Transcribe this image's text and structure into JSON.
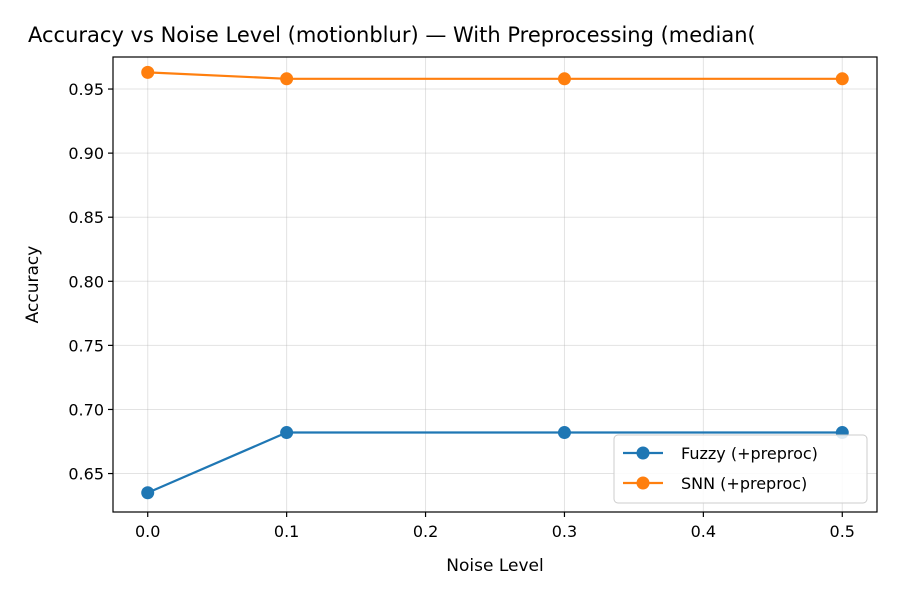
{
  "chart_data": {
    "type": "line",
    "title": "Accuracy vs Noise Level (motionblur) — With Preprocessing (median(",
    "xlabel": "Noise Level",
    "ylabel": "Accuracy",
    "xlim": [
      -0.025,
      0.525
    ],
    "ylim": [
      0.62,
      0.975
    ],
    "xticks": [
      0.0,
      0.1,
      0.2,
      0.3,
      0.4,
      0.5
    ],
    "xtick_labels": [
      "0.0",
      "0.1",
      "0.2",
      "0.3",
      "0.4",
      "0.5"
    ],
    "yticks": [
      0.65,
      0.7,
      0.75,
      0.8,
      0.85,
      0.9,
      0.95
    ],
    "ytick_labels": [
      "0.65",
      "0.70",
      "0.75",
      "0.80",
      "0.85",
      "0.90",
      "0.95"
    ],
    "grid": true,
    "legend_position": "lower-right",
    "series": [
      {
        "name": "Fuzzy (+preproc)",
        "color": "#1f77b4",
        "marker": "circle",
        "x": [
          0.0,
          0.1,
          0.3,
          0.5
        ],
        "y": [
          0.635,
          0.682,
          0.682,
          0.682
        ]
      },
      {
        "name": "SNN (+preproc)",
        "color": "#ff7f0e",
        "marker": "circle",
        "x": [
          0.0,
          0.1,
          0.3,
          0.5
        ],
        "y": [
          0.963,
          0.958,
          0.958,
          0.958
        ]
      }
    ]
  }
}
